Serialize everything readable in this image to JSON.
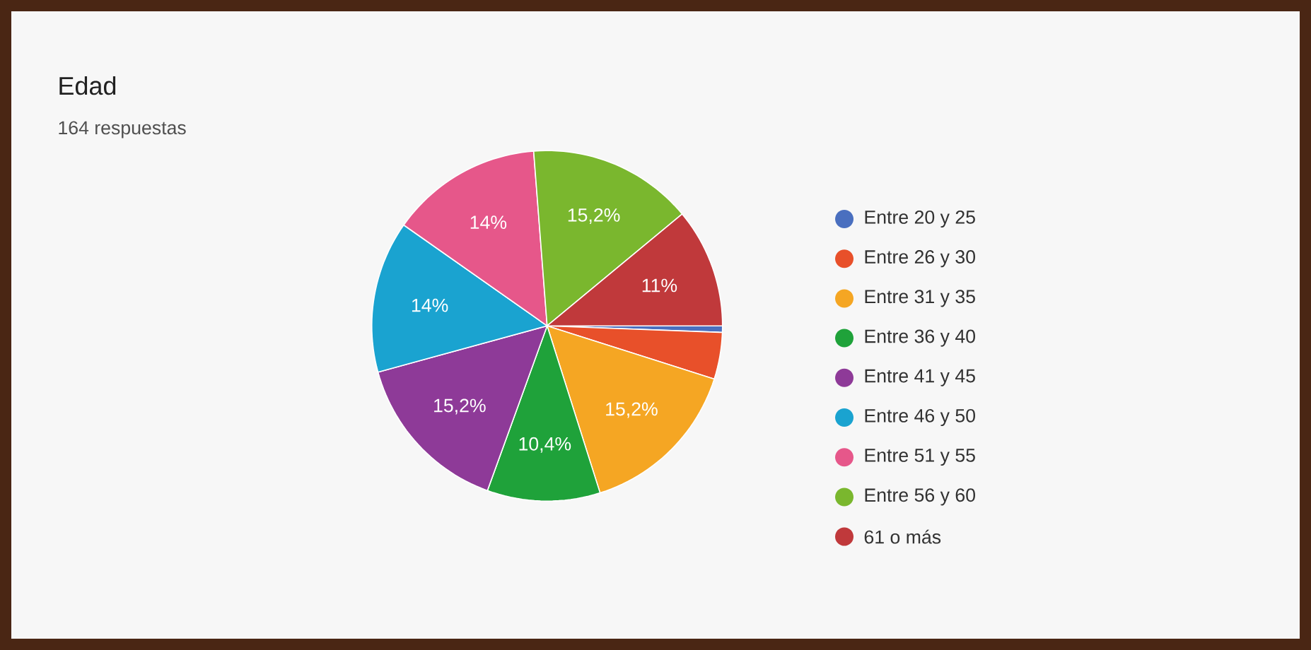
{
  "chart_data": {
    "type": "pie",
    "title": "Edad",
    "subtitle": "164 respuestas",
    "categories": [
      "Entre 20 y 25",
      "Entre 26 y 30",
      "Entre 31 y 35",
      "Entre 36 y 40",
      "Entre 41 y 45",
      "Entre 46 y 50",
      "Entre 51 y 55",
      "Entre 56 y 60",
      "61 o más"
    ],
    "values": [
      0.6,
      4.3,
      15.2,
      10.4,
      15.2,
      14,
      14,
      15.2,
      11
    ],
    "value_labels": [
      null,
      null,
      "15,2%",
      "10,4%",
      "15,2%",
      "14%",
      "14%",
      "15,2%",
      "11%"
    ],
    "colors": [
      "#4a6fbf",
      "#e8502a",
      "#f5a623",
      "#1fa23a",
      "#8e3a98",
      "#1aa3d0",
      "#e6578a",
      "#7ab72e",
      "#c0393b"
    ],
    "legend": "right"
  }
}
